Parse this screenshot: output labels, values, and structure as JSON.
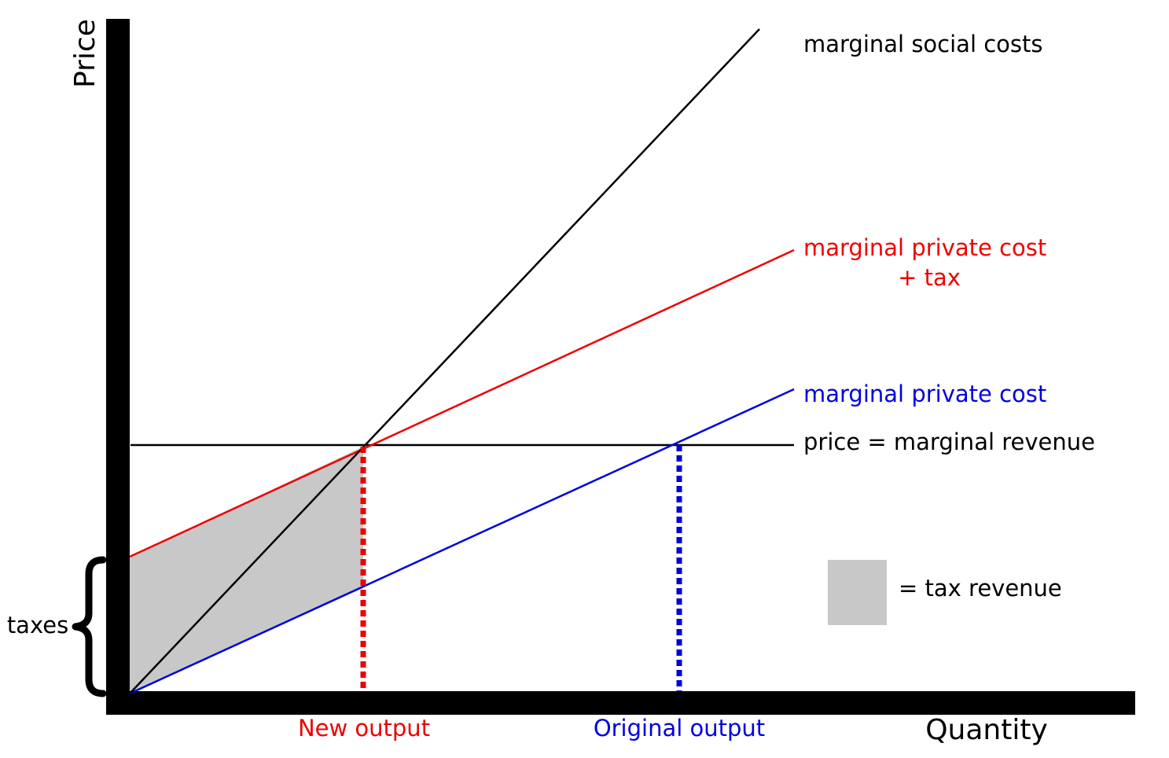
{
  "axes": {
    "y_label": "Price",
    "x_label": "Quantity"
  },
  "curves": {
    "marginal_social_costs": {
      "label": "marginal social costs",
      "color": "#000000"
    },
    "marginal_private_cost_plus_tax": {
      "label_line1": "marginal private cost",
      "label_line2": "+ tax",
      "color": "#ee0000"
    },
    "marginal_private_cost": {
      "label": "marginal private cost",
      "color": "#0000dd"
    },
    "price_marginal_revenue": {
      "label": "price = marginal revenue",
      "color": "#000000"
    }
  },
  "x_markers": {
    "new_output": {
      "label": "New output",
      "color": "#ee0000"
    },
    "original_output": {
      "label": "Original output",
      "color": "#0000dd"
    }
  },
  "taxes_brace": {
    "label": "taxes"
  },
  "legend": {
    "label": "= tax revenue",
    "swatch_color": "#c8c8c8"
  }
}
